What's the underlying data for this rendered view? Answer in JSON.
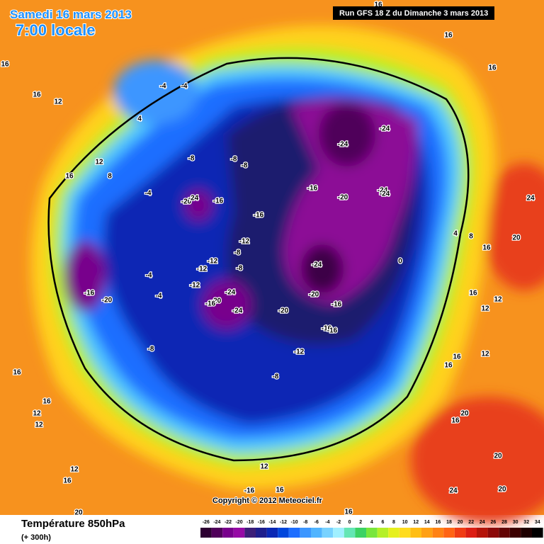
{
  "header": {
    "date": "Samedi 16 mars 2013",
    "time": "7:00 locale",
    "run": "Run GFS 18 Z du Dimanche 3 mars 2013"
  },
  "footer": {
    "title": "Température 850hPa",
    "lead": "(+ 300h)",
    "copyright": "Copyright © 2012 Meteociel.fr"
  },
  "legend": {
    "ticks": [
      -26,
      -24,
      -22,
      -20,
      -18,
      -16,
      -14,
      -12,
      -10,
      -8,
      -6,
      -4,
      -2,
      0,
      2,
      4,
      6,
      8,
      10,
      12,
      14,
      16,
      18,
      20,
      22,
      24,
      26,
      28,
      30,
      32,
      34
    ],
    "colors": [
      "#2d0032",
      "#50005a",
      "#78008c",
      "#960aa5",
      "#3c1e78",
      "#1e1e8c",
      "#0a28b4",
      "#0046dc",
      "#1e6eff",
      "#3c96ff",
      "#50b4ff",
      "#78d2ff",
      "#a0f0ff",
      "#64e6b4",
      "#3cd264",
      "#78e63c",
      "#b4f028",
      "#e6f01e",
      "#ffdc1e",
      "#ffbe14",
      "#ffa014",
      "#ff8214",
      "#ff6414",
      "#f03c14",
      "#dc1e14",
      "#b4140a",
      "#8c0a0a",
      "#640505",
      "#3c0000",
      "#1e0000",
      "#000000"
    ]
  },
  "map": {
    "labels": [
      16,
      16,
      16,
      16,
      12,
      -4,
      -4,
      4,
      12,
      16,
      8,
      -4,
      -8,
      -8,
      -8,
      -16,
      -20,
      -24,
      -24,
      -24,
      -24,
      -16,
      -16,
      -20,
      -24,
      -12,
      -8,
      -12,
      -8,
      -12,
      -12,
      -24,
      -20,
      -24,
      -16,
      -20,
      -20,
      -16,
      -24,
      0,
      -16,
      -16,
      -12,
      -8,
      -8,
      -4,
      -4,
      -16,
      -20,
      16,
      16,
      12,
      12,
      12,
      16,
      20,
      12,
      -16,
      16,
      16,
      16,
      24,
      20,
      4,
      8,
      16,
      16,
      12,
      12,
      16,
      16,
      12,
      20,
      16,
      20,
      24,
      20
    ]
  }
}
